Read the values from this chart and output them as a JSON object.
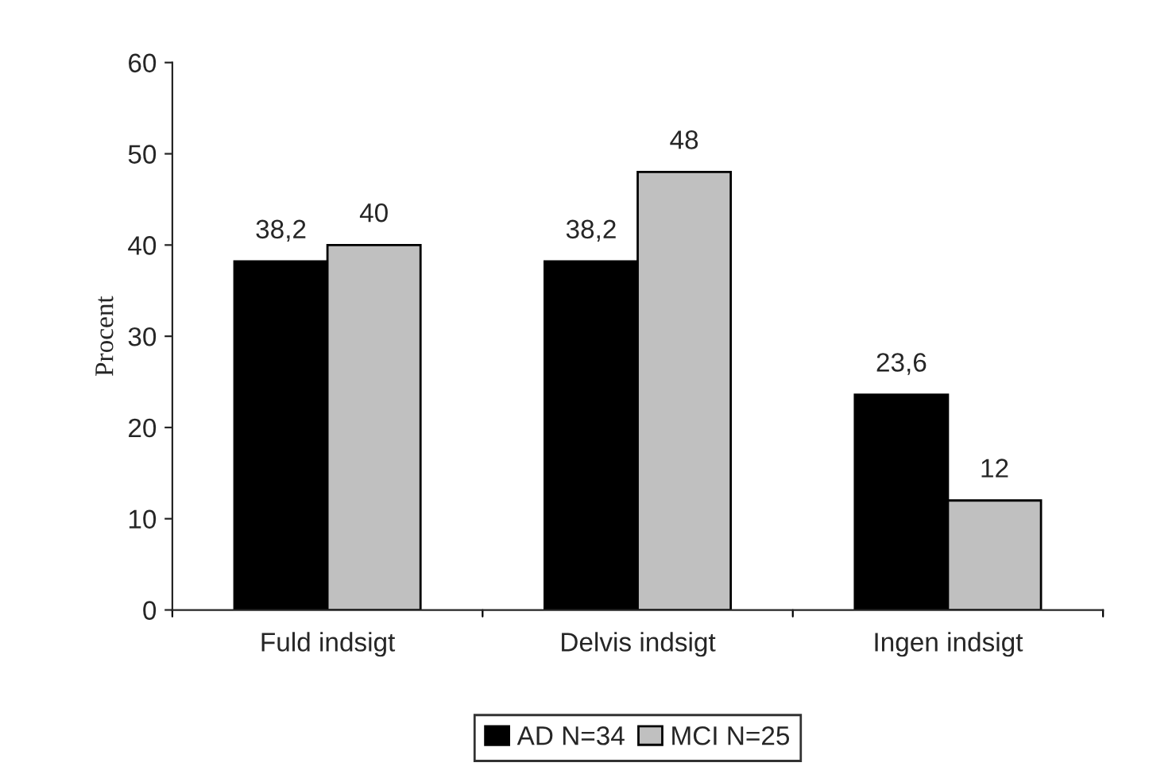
{
  "chart_data": {
    "type": "bar",
    "ylabel": "Procent",
    "categories": [
      "Fuld indsigt",
      "Delvis indsigt",
      "Ingen indsigt"
    ],
    "series": [
      {
        "name": "AD N=34",
        "color": "#000000",
        "values": [
          38.2,
          38.2,
          23.6
        ],
        "value_labels": [
          "38,2",
          "38,2",
          "23,6"
        ]
      },
      {
        "name": "MCI N=25",
        "color": "#c0c0c0",
        "values": [
          40,
          48,
          12
        ],
        "value_labels": [
          "40",
          "48",
          "12"
        ]
      }
    ],
    "ylim": [
      0,
      60
    ],
    "yticks": [
      0,
      10,
      20,
      30,
      40,
      50,
      60
    ],
    "grid": false,
    "legend": "bottom"
  }
}
